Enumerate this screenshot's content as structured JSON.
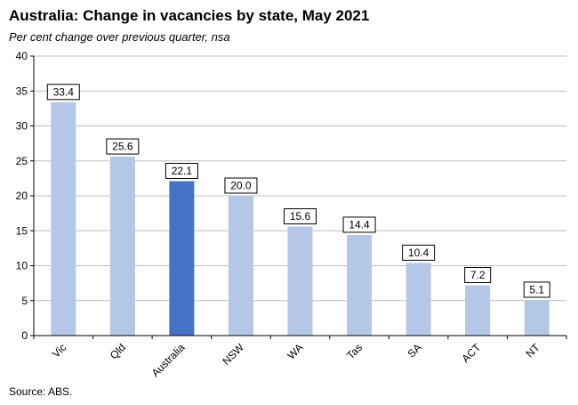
{
  "chart_data": {
    "type": "bar",
    "title": "Australia: Change in vacancies by state, May 2021",
    "subtitle": "Per cent change over previous quarter, nsa",
    "source": "Source: ABS.",
    "categories": [
      "Vic",
      "Qld",
      "Australia",
      "NSW",
      "WA",
      "Tas",
      "SA",
      "ACT",
      "NT"
    ],
    "values": [
      33.4,
      25.6,
      22.1,
      20.0,
      15.6,
      14.4,
      10.4,
      7.2,
      5.1
    ],
    "value_labels": [
      "33.4",
      "25.6",
      "22.1",
      "20.0",
      "15.6",
      "14.4",
      "10.4",
      "7.2",
      "5.1"
    ],
    "highlight": "Australia",
    "ylim": [
      0,
      40
    ],
    "yticks": [
      0,
      5,
      10,
      15,
      20,
      25,
      30,
      35,
      40
    ],
    "grid": true,
    "legend": "none",
    "colors": {
      "bar": "#b4c7e7",
      "highlight": "#4472c4",
      "grid": "#bfbfbf",
      "axis": "#000000"
    }
  }
}
